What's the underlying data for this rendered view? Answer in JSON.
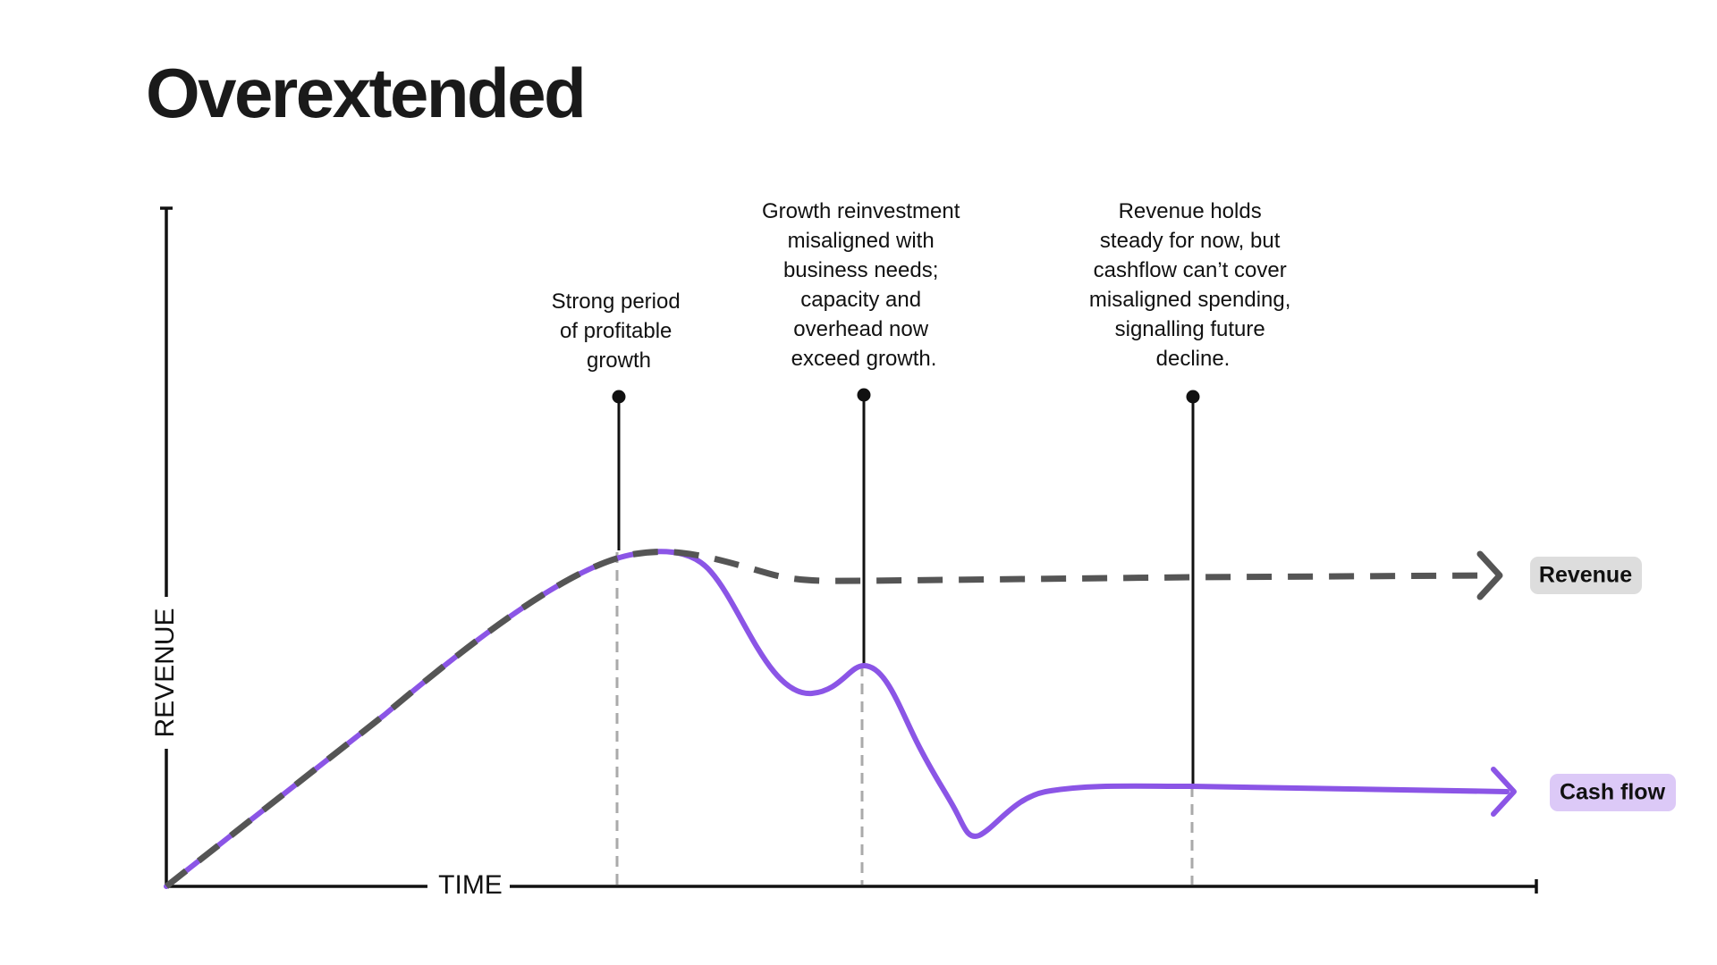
{
  "title": "Overextended",
  "axes": {
    "y_label": "REVENUE",
    "x_label": "TIME"
  },
  "annotations": [
    {
      "id": "profitable-growth",
      "lines": [
        "Strong period",
        "of profitable",
        "growth"
      ]
    },
    {
      "id": "reinvestment-misaligned",
      "lines": [
        "Growth reinvestment",
        "misaligned with",
        "business needs;",
        "capacity and",
        "overhead now",
        "exceed growth."
      ]
    },
    {
      "id": "future-decline",
      "lines": [
        "Revenue holds",
        "steady for now, but",
        "cashflow can’t cover",
        "misaligned spending,",
        "signalling future",
        "decline."
      ]
    }
  ],
  "legend": {
    "revenue": "Revenue",
    "cash_flow": "Cash flow"
  },
  "colors": {
    "revenue_line": "#555555",
    "cash_flow_line": "#8b55e6",
    "revenue_label_bg": "#dddddd",
    "cash_flow_label_bg": "#dcc9f7",
    "axis": "#111111",
    "guide_dashed": "#aaaaaa"
  }
}
